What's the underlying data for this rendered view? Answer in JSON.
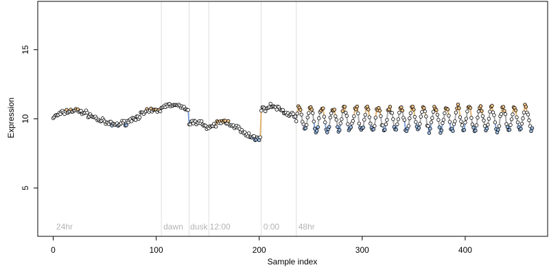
{
  "chart_data": {
    "type": "scatter",
    "title": "",
    "xlabel": "Sample index",
    "ylabel": "Expression",
    "xlim": [
      -15,
      480
    ],
    "ylim": [
      1.5,
      18.5
    ],
    "x_ticks": [
      0,
      100,
      200,
      300,
      400
    ],
    "y_ticks": [
      5,
      10,
      15
    ],
    "grid": false,
    "colors": {
      "point_fill_neutral": "#ffffff",
      "point_fill_peak": "#f2c48a",
      "point_fill_trough": "#9fc0e8",
      "point_stroke": "#000000",
      "line_peak": "#e1b36f",
      "line_trough": "#7fa3d9",
      "line_neutral": "#a8a8a8",
      "divider": "#dddddd"
    },
    "dividers": [
      105,
      132,
      151,
      202,
      236
    ],
    "annotations": [
      {
        "text": "24hr",
        "x": 3,
        "y": 2.0
      },
      {
        "text": "dawn",
        "x": 107,
        "y": 2.0
      },
      {
        "text": "dusk",
        "x": 133,
        "y": 2.0
      },
      {
        "text": "12:00",
        "x": 152,
        "y": 2.0
      },
      {
        "text": "0:00",
        "x": 204,
        "y": 2.0
      },
      {
        "text": "48hr",
        "x": 238,
        "y": 2.0
      }
    ],
    "segments": [
      {
        "x_start": 0,
        "x_end": 105,
        "baseline": 10.1,
        "amplitude": 0.5,
        "period": 80,
        "phase": 0,
        "noise": 0.28
      },
      {
        "x_start": 105,
        "x_end": 132,
        "baseline": 10.85,
        "amplitude": 0.15,
        "period": 40,
        "phase": 0,
        "noise": 0.18
      },
      {
        "x_start": 132,
        "x_end": 151,
        "baseline": 9.5,
        "amplitude": 0.35,
        "period": 30,
        "phase": 0,
        "noise": 0.3
      },
      {
        "x_start": 151,
        "x_end": 202,
        "baseline": 9.2,
        "amplitude": 0.6,
        "period": 60,
        "phase": 0,
        "noise": 0.35
      },
      {
        "x_start": 202,
        "x_end": 236,
        "baseline": 10.6,
        "amplitude": 0.3,
        "period": 40,
        "phase": 0,
        "noise": 0.3
      },
      {
        "x_start": 236,
        "x_end": 466,
        "baseline": 10.0,
        "amplitude": 0.85,
        "period": 11,
        "phase": 0,
        "noise": 0.32
      }
    ]
  }
}
